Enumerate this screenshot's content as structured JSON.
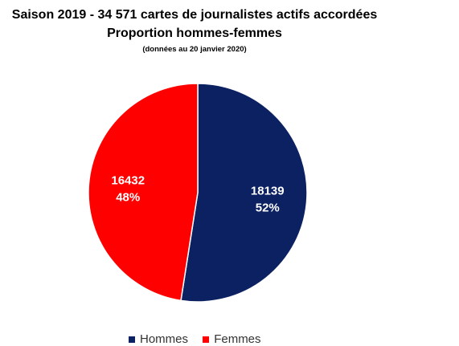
{
  "chart_data": {
    "type": "pie",
    "title": "Saison 2019 - 34 571 cartes de journalistes actifs accordées",
    "subtitle": "Proportion hommes-femmes",
    "note": "(données au 20 janvier 2020)",
    "slices": [
      {
        "name": "Hommes",
        "value": 18139,
        "percent": "52%",
        "color": "#0b2161"
      },
      {
        "name": "Femmes",
        "value": 16432,
        "percent": "48%",
        "color": "#ff0000"
      }
    ],
    "data_labels": [
      {
        "value": "18139",
        "percent": "52%"
      },
      {
        "value": "16432",
        "percent": "48%"
      }
    ],
    "legend": {
      "position": "bottom",
      "entries": [
        "Hommes",
        "Femmes"
      ]
    }
  }
}
